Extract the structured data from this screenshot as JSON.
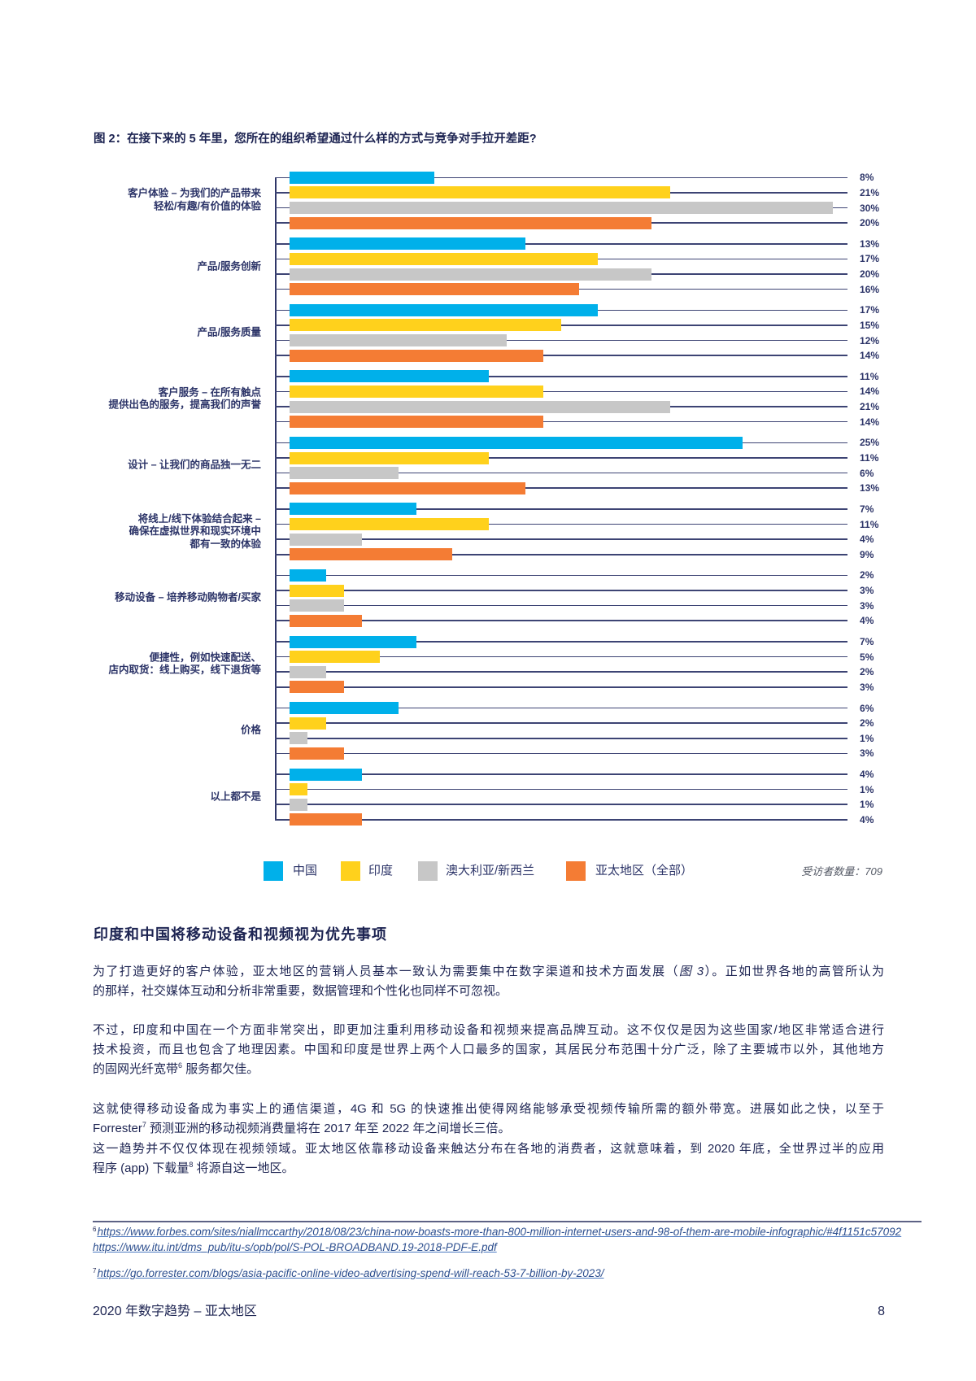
{
  "chart_data": {
    "type": "bar",
    "orientation": "horizontal",
    "title": "图 2：在接下来的 5 年里，您所在的组织希望通过什么样的方式与竞争对手拉开差距?",
    "categories": [
      "客户体验 – 为我们的产品带来\n轻松/有趣/有价值的体验",
      "产品/服务创新",
      "产品/服务质量",
      "客户服务 – 在所有触点\n提供出色的服务，提高我们的声誉",
      "设计 – 让我们的商品独一无二",
      "将线上/线下体验结合起来 –\n确保在虚拟世界和现实环境中\n都有一致的体验",
      "移动设备 – 培养移动购物者/买家",
      "便捷性，例如快速配送、\n店内取货：线上购买，线下退货等",
      "价格",
      "以上都不是"
    ],
    "series": [
      {
        "name": "中国",
        "color": "#00b0ea",
        "values": [
          8,
          13,
          17,
          11,
          25,
          7,
          2,
          7,
          6,
          4
        ]
      },
      {
        "name": "印度",
        "color": "#ffd11c",
        "values": [
          21,
          17,
          15,
          14,
          11,
          11,
          3,
          5,
          2,
          1
        ]
      },
      {
        "name": "澳大利亚/新西兰",
        "color": "#c7c7c7",
        "values": [
          30,
          20,
          12,
          21,
          6,
          4,
          3,
          2,
          1,
          1
        ]
      },
      {
        "name": "亚太地区（全部）",
        "color": "#f47c34",
        "values": [
          20,
          16,
          14,
          14,
          13,
          9,
          4,
          3,
          3,
          4
        ]
      }
    ],
    "unit": "%",
    "xlabel": "",
    "ylabel": "",
    "xlim": [
      0,
      30
    ],
    "grid": false,
    "legend_position": "bottom",
    "annotation": "受访者数量：709"
  },
  "section": {
    "heading": "印度和中国将移动设备和视频视为优先事项"
  },
  "body": {
    "p1": {
      "l1_a": "为了打造更好的客户体验，亚太地区的营销人员基本一致认为需要集中在数字渠道和技术方面发展（",
      "l1_ref": "图 3",
      "l1_b": "）。正如世界各地的高管所认为",
      "l2": "的那样，社交媒体互动和分析非常重要，数据管理和个性化也同样不可忽视。"
    },
    "p2": {
      "l1": "不过，印度和中国在一个方面非常突出，即更加注重利用移动设备和视频来提高品牌互动。这不仅仅是因为这些国家/地区非常适合进行",
      "l2": "技术投资，而且也包含了地理因素。中国和印度是世界上两个人口最多的国家，其居民分布范围十分广泛，除了主要城市以外，其他地方",
      "l3_a": "的固网光纤宽带",
      "l3_sup": "6",
      "l3_b": " 服务都欠佳。"
    },
    "p3": {
      "l1": "这就使得移动设备成为事实上的通信渠道，4G 和 5G 的快速推出使得网络能够承受视频传输所需的额外带宽。进展如此之快，以至于",
      "l2_a": "Forrester",
      "l2_sup": "7",
      "l2_b": " 预测亚洲的移动视频消费量将在 2017 年至 2022 年之间增长三倍。",
      "l3": "这一趋势并不仅仅体现在视频领域。亚太地区依靠移动设备来触达分布在各地的消费者，这就意味着，到 2020 年底，全世界过半的应用",
      "l4_a": "程序 (app) 下载量",
      "l4_sup": "8",
      "l4_b": " 将源自这一地区。"
    }
  },
  "footnotes": [
    {
      "marker": "6",
      "links": [
        "https://www.forbes.com/sites/niallmccarthy/2018/08/23/china-now-boasts-more-than-800-million-internet-users-and-98-of-them-are-mobile-infographic/#4f1151c57092",
        "https://www.itu.int/dms_pub/itu-s/opb/pol/S-POL-BROADBAND.19-2018-PDF-E.pdf"
      ]
    },
    {
      "marker": "7",
      "links": [
        "https://go.forrester.com/blogs/asia-pacific-online-video-advertising-spend-will-reach-53-7-billion-by-2023/"
      ]
    }
  ],
  "footer": {
    "title": "2020 年数字趋势 – 亚太地区",
    "page_number": "8"
  }
}
